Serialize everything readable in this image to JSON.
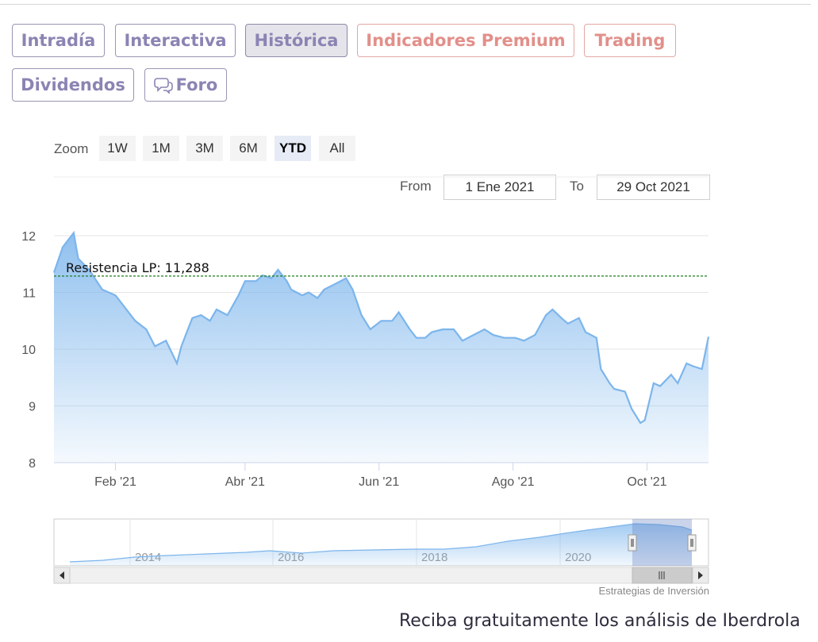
{
  "tabs": [
    {
      "label": "Intradía",
      "style": "normal"
    },
    {
      "label": "Interactiva",
      "style": "normal"
    },
    {
      "label": "Histórica",
      "style": "active"
    },
    {
      "label": "Indicadores Premium",
      "style": "premium"
    },
    {
      "label": "Trading",
      "style": "premium"
    },
    {
      "label": "Dividendos",
      "style": "normal"
    },
    {
      "label": "Foro",
      "style": "normal",
      "icon": "chat-bubbles-icon"
    }
  ],
  "zoom": {
    "label": "Zoom",
    "buttons": [
      "1W",
      "1M",
      "3M",
      "6M",
      "YTD",
      "All"
    ],
    "selected": "YTD"
  },
  "range": {
    "from_label": "From",
    "from_value": "1 Ene 2021",
    "to_label": "To",
    "to_value": "29 Oct 2021"
  },
  "colors": {
    "accent": "#8b84b3",
    "premium": "#e28f8a",
    "series_line": "#7cb5ec",
    "resistance_line": "#1e7d1e"
  },
  "chart_data": {
    "type": "area",
    "x_axis_ticks": [
      "Feb '21",
      "Abr '21",
      "Jun '21",
      "Ago '21",
      "Oct '21"
    ],
    "y_axis_ticks": [
      12,
      11,
      10,
      9,
      8
    ],
    "ylim": [
      8,
      12.2
    ],
    "x": [
      "2021-01-04",
      "2021-01-08",
      "2021-01-13",
      "2021-01-15",
      "2021-01-20",
      "2021-01-26",
      "2021-02-01",
      "2021-02-05",
      "2021-02-10",
      "2021-02-15",
      "2021-02-19",
      "2021-02-24",
      "2021-03-01",
      "2021-03-03",
      "2021-03-08",
      "2021-03-12",
      "2021-03-16",
      "2021-03-19",
      "2021-03-24",
      "2021-03-29",
      "2021-04-01",
      "2021-04-06",
      "2021-04-09",
      "2021-04-13",
      "2021-04-16",
      "2021-04-20",
      "2021-04-22",
      "2021-04-27",
      "2021-04-30",
      "2021-05-04",
      "2021-05-07",
      "2021-05-12",
      "2021-05-17",
      "2021-05-20",
      "2021-05-24",
      "2021-05-28",
      "2021-06-02",
      "2021-06-07",
      "2021-06-10",
      "2021-06-15",
      "2021-06-18",
      "2021-06-22",
      "2021-06-25",
      "2021-06-30",
      "2021-07-05",
      "2021-07-09",
      "2021-07-14",
      "2021-07-19",
      "2021-07-23",
      "2021-07-28",
      "2021-08-02",
      "2021-08-06",
      "2021-08-11",
      "2021-08-16",
      "2021-08-19",
      "2021-08-23",
      "2021-08-26",
      "2021-08-31",
      "2021-09-03",
      "2021-09-08",
      "2021-09-10",
      "2021-09-14",
      "2021-09-16",
      "2021-09-21",
      "2021-09-24",
      "2021-09-28",
      "2021-09-30",
      "2021-10-04",
      "2021-10-07",
      "2021-10-12",
      "2021-10-15",
      "2021-10-19",
      "2021-10-22",
      "2021-10-26",
      "2021-10-29"
    ],
    "series": [
      {
        "values": [
          11.35,
          11.8,
          12.05,
          11.6,
          11.4,
          11.05,
          10.95,
          10.75,
          10.5,
          10.35,
          10.05,
          10.15,
          9.75,
          10.05,
          10.55,
          10.6,
          10.5,
          10.7,
          10.6,
          10.95,
          11.2,
          11.2,
          11.3,
          11.25,
          11.4,
          11.2,
          11.05,
          10.95,
          11,
          10.9,
          11.05,
          11.15,
          11.25,
          11.05,
          10.6,
          10.35,
          10.5,
          10.5,
          10.65,
          10.35,
          10.2,
          10.2,
          10.3,
          10.35,
          10.35,
          10.15,
          10.25,
          10.35,
          10.25,
          10.2,
          10.2,
          10.15,
          10.25,
          10.6,
          10.7,
          10.55,
          10.45,
          10.55,
          10.3,
          10.2,
          9.65,
          9.4,
          9.3,
          9.25,
          8.95,
          8.7,
          8.75,
          9.4,
          9.35,
          9.55,
          9.4,
          9.75,
          9.7,
          9.65,
          10.22
        ]
      }
    ],
    "resistance": {
      "label": "Resistencia LP: 11,288",
      "value": 11.288
    },
    "navigator": {
      "year_labels": [
        "2014",
        "2016",
        "2018",
        "2020"
      ]
    }
  },
  "credit": "Estrategias de Inversión",
  "cta_text": "Reciba gratuitamente los análisis de Iberdrola"
}
